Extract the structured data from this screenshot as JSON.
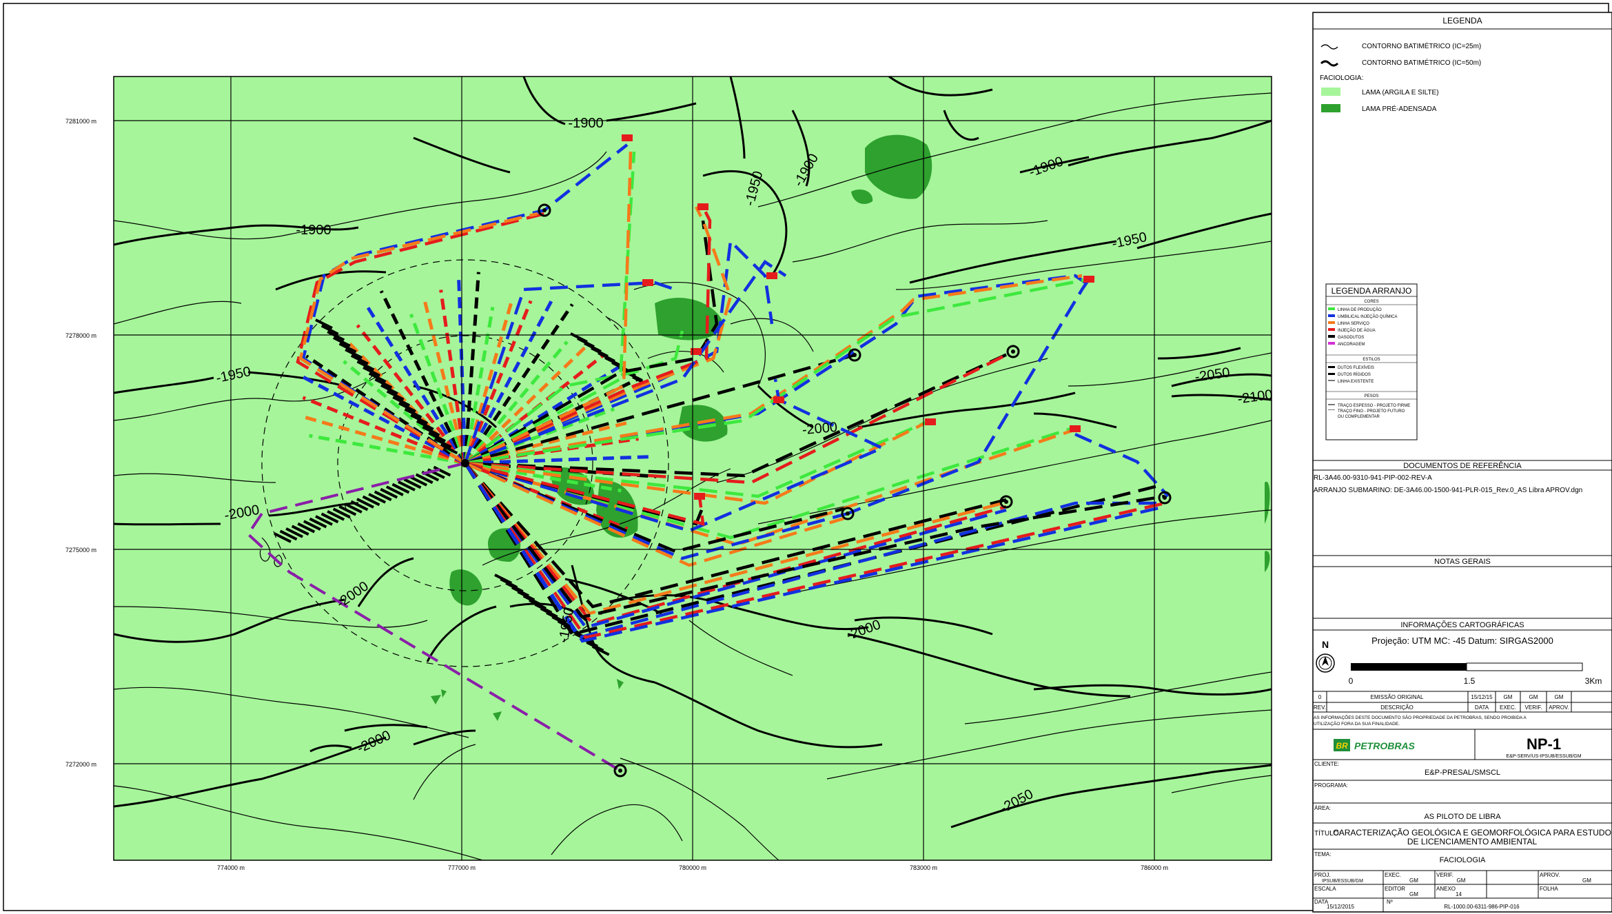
{
  "map": {
    "y_ticks": [
      "7281000 m",
      "7278000 m",
      "7275000 m",
      "7272000 m"
    ],
    "x_ticks": [
      "774000 m",
      "777000 m",
      "780000 m",
      "783000 m",
      "786000 m"
    ],
    "contour_labels": [
      "-1900",
      "-1900",
      "-1950",
      "-1900",
      "-1900",
      "-1950",
      "-1950",
      "-2000",
      "-2000",
      "-2000",
      "-2000",
      "-2000",
      "-2050",
      "-2100",
      "-2050",
      "-1950"
    ],
    "colors": {
      "lama": "#a6f59a",
      "lama_pre_adensada": "#2ea12e",
      "producao": "#3ee83e",
      "umbilical": "#1230e0",
      "servico": "#f57a1a",
      "injecao_agua": "#e51c1c",
      "gasodutos": "#000000",
      "ancoragem": "#8a1fa8"
    }
  },
  "legend": {
    "title": "LEGENDA",
    "contour_25": "CONTORNO BATIMÉTRICO (IC=25m)",
    "contour_50": "CONTORNO BATIMÉTRICO (IC=50m)",
    "faciologia": "FACIOLOGIA:",
    "lama": "LAMA (ARGILA E SILTE)",
    "lama_pre": "LAMA PRÉ-ADENSADA"
  },
  "arranjo": {
    "title": "LEGENDA ARRANJO",
    "cores": "CORES",
    "cores_items": [
      "LINHA DE PRODUÇÃO",
      "UMBILICAL INJEÇÃO QUÍMICA",
      "LINHA SERVIÇO",
      "INJEÇÃO DE ÁGUA",
      "GASODUTOS",
      "ANCORAGEM"
    ],
    "estilos": "ESTILOS",
    "estilos_items": [
      "DUTOS FLEXÍVEIS",
      "DUTOS RÍGIDOS",
      "LINHA EXISTENTE"
    ],
    "pesos": "PESOS",
    "pesos_items": [
      "TRAÇO ESPESSO - PROJETO FIRME",
      "TRAÇO FINO - PROJETO FUTURO",
      "OU COMPLEMENTAR"
    ]
  },
  "docs": {
    "title": "DOCUMENTOS DE REFERÊNCIA",
    "line1": "RL-3A46.00-9310-941-PIP-002-REV-A",
    "line2": "ARRANJO SUBMARINO: DE-3A46.00-1500-941-PLR-015_Rev.0_AS Libra APROV.dgn"
  },
  "notas": {
    "title": "NOTAS GERAIS"
  },
  "carto": {
    "title": "INFORMAÇÕES CARTOGRÁFICAS",
    "projection": "Projeção: UTM  MC: -45  Datum: SIRGAS2000",
    "north": "N",
    "scale_labels": [
      "0",
      "1.5",
      "3Km"
    ]
  },
  "revision": {
    "row": [
      "0",
      "EMISSÃO ORIGINAL",
      "15/12/15",
      "GM",
      "GM",
      "GM"
    ],
    "header": [
      "REV.",
      "DESCRIÇÃO",
      "DATA",
      "EXEC.",
      "VERIF.",
      "APROV."
    ],
    "notice_1": "AS INFORMAÇÕES DESTE DOCUMENTO SÃO PROPRIEDADE DA PETROBRAS, SENDO PROIBIDA A",
    "notice_2": "UTILIZAÇÃO FORA DA SUA FINALIDADE."
  },
  "title_block": {
    "logo_br": "BR",
    "company": "PETROBRAS",
    "doc_code": "NP-1",
    "department": "E&P-SERV/US-IPSUB/ESSUB/GM",
    "cliente_label": "CLIENTE:",
    "cliente": "E&P-PRESAL/SMSCL",
    "programa_label": "PROGRAMA:",
    "area_label": "ÁREA:",
    "area": "AS PILOTO DE LIBRA",
    "titulo_label": "TÍTULO:",
    "titulo_1": "CARACTERIZAÇÃO GEOLÓGICA E GEOMORFOLÓGICA PARA ESTUDO",
    "titulo_2": "DE LICENCIAMENTO AMBIENTAL",
    "tema_label": "TEMA:",
    "tema": "FACIOLOGIA",
    "proj_label": "PROJ.",
    "proj": "IPSUB/ESSUB/GM",
    "exec_label": "EXEC.",
    "exec": "GM",
    "verif_label": "VERIF.",
    "verif": "GM",
    "aprov_label": "APROV.",
    "aprov": "GM",
    "escala_label": "ESCALA",
    "editor_label": "EDITOR",
    "editor": "GM",
    "anexo_label": "ANEXO",
    "anexo": "14",
    "folha_label": "FOLHA",
    "data_label": "DATA",
    "data": "15/12/2015",
    "numero_label": "Nº",
    "numero": "RL-1000.00-6311-986-PIP-016"
  }
}
